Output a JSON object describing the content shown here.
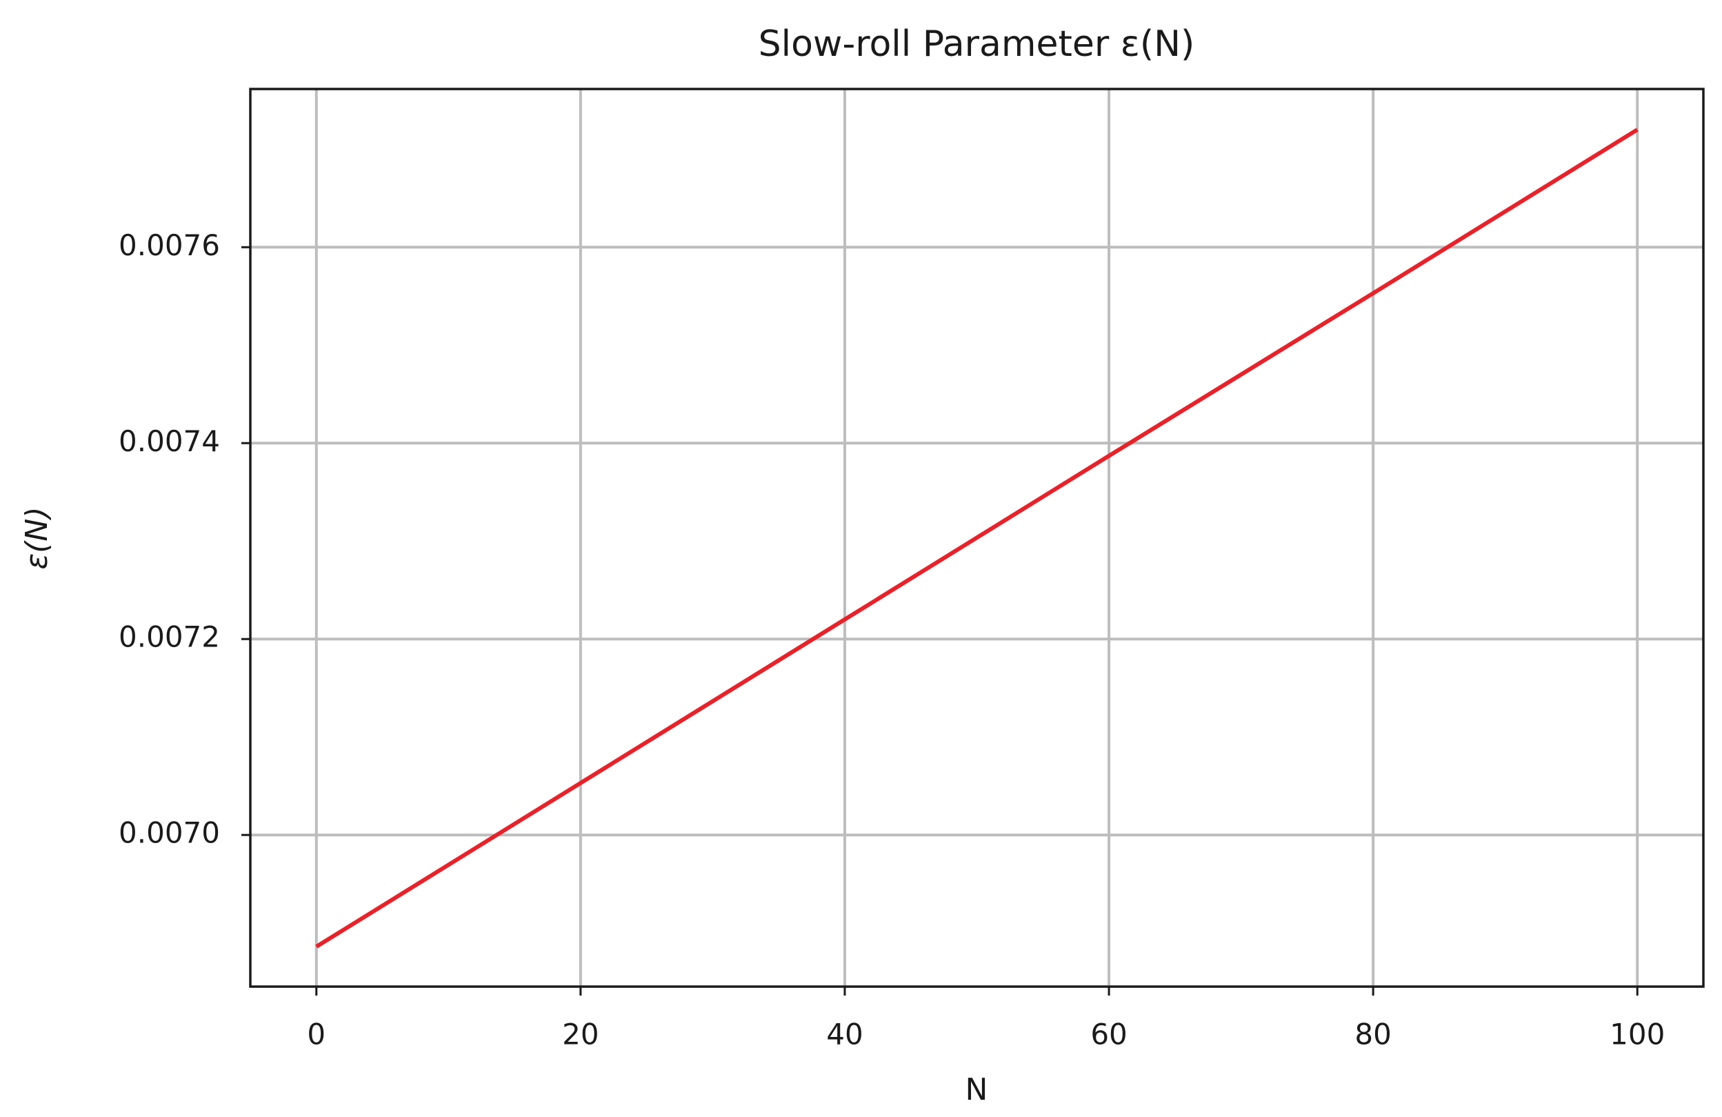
{
  "chart_data": {
    "type": "line",
    "title": "Slow-roll Parameter ε(N)",
    "x_label": "N",
    "y_label": "ε(N)",
    "x": [
      0,
      20,
      40,
      60,
      80,
      100
    ],
    "series": [
      {
        "color": "#e8222a",
        "values": [
          0.006886,
          0.007053,
          0.00722,
          0.007387,
          0.007553,
          0.00772
        ]
      }
    ],
    "xlim": [
      -5,
      105
    ],
    "xticks": [
      0,
      20,
      40,
      60,
      80,
      100
    ],
    "ylim": [
      0.0068452,
      0.0077615
    ],
    "yticks": [
      {
        "value": 0.007,
        "label": "0.0070"
      },
      0.0072,
      0.0074,
      0.0076
    ],
    "grid": true
  }
}
